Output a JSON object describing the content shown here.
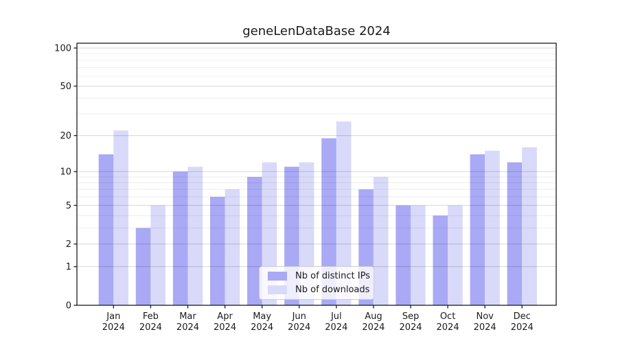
{
  "chart_data": {
    "type": "bar",
    "title": "geneLenDataBase 2024",
    "categories": [
      "Jan",
      "Feb",
      "Mar",
      "Apr",
      "May",
      "Jun",
      "Jul",
      "Aug",
      "Sep",
      "Oct",
      "Nov",
      "Dec"
    ],
    "x_tick_year_line": "2024",
    "series": [
      {
        "name": "Nb of distinct IPs",
        "color": "#a9a9f5",
        "values": [
          14,
          3,
          10,
          6,
          9,
          11,
          19,
          7,
          5,
          4,
          14,
          12
        ]
      },
      {
        "name": "Nb of downloads",
        "color": "#d9d9f9",
        "values": [
          22,
          5,
          11,
          7,
          12,
          12,
          26,
          9,
          5,
          5,
          15,
          16
        ]
      }
    ],
    "y_axis": {
      "scale": "log1p",
      "ticks": [
        0,
        1,
        2,
        5,
        10,
        20,
        50,
        100
      ],
      "tick_labels": [
        "0",
        "1",
        "2",
        "5",
        "10",
        "20",
        "50",
        "100"
      ],
      "minor_gridlines": [
        3,
        4,
        6,
        7,
        8,
        9,
        30,
        40,
        60,
        70,
        80,
        90
      ],
      "ylim": [
        0,
        109
      ]
    },
    "legend_position": "lower center",
    "grid": true,
    "colors": {
      "axis": "#1a1a1a",
      "text": "#1a1a1a",
      "grid_major": "rgba(0,0,0,0.16)",
      "grid_minor": "rgba(0,0,0,0.07)",
      "background": "#ffffff"
    }
  }
}
